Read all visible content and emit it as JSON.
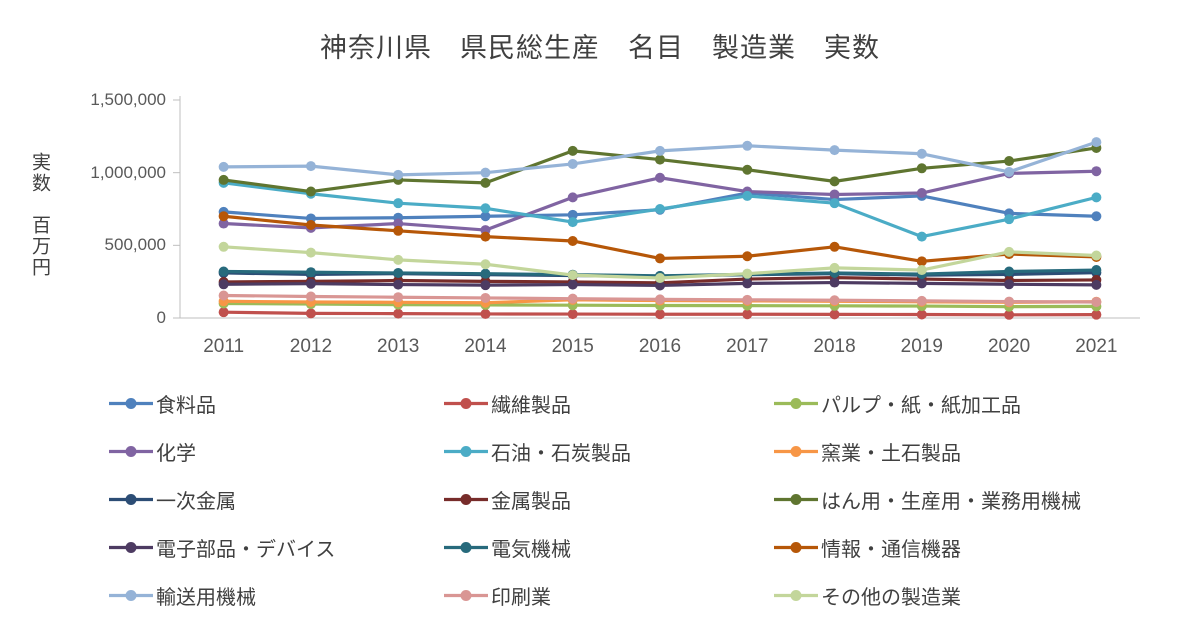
{
  "title": "神奈川県　県民総生産　名目　製造業　実数",
  "y_axis": {
    "label": "実数　百万円",
    "ticks": [
      {
        "label": "1,500,000",
        "value": 1500000
      },
      {
        "label": "1,000,000",
        "value": 1000000
      },
      {
        "label": "500,000",
        "value": 500000
      },
      {
        "label": "0",
        "value": 0
      }
    ]
  },
  "colors": {
    "axis": "#BFBFBF",
    "tick_text": "#595959",
    "title_text": "#404040"
  },
  "chart_data": {
    "type": "line",
    "x": [
      "2011",
      "2012",
      "2013",
      "2014",
      "2015",
      "2016",
      "2017",
      "2018",
      "2019",
      "2020",
      "2021"
    ],
    "ylim": [
      0,
      1500000
    ],
    "ylabel": "実数 百万円",
    "title": "神奈川県 県民総生産 名目 製造業 実数",
    "grid": false,
    "legend_position": "bottom",
    "series": [
      {
        "name": "食料品",
        "color": "#4F81BD",
        "values": [
          730000,
          685000,
          690000,
          700000,
          710000,
          745000,
          860000,
          815000,
          840000,
          720000,
          700000
        ]
      },
      {
        "name": "繊維製品",
        "color": "#C0504D",
        "values": [
          40000,
          32000,
          30000,
          28000,
          27000,
          26000,
          26000,
          25000,
          24000,
          22000,
          23000
        ]
      },
      {
        "name": "パルプ・紙・紙加工品",
        "color": "#9BBB59",
        "values": [
          100000,
          96000,
          92000,
          90000,
          88000,
          86000,
          85000,
          84000,
          82000,
          78000,
          80000
        ]
      },
      {
        "name": "化学",
        "color": "#8064A2",
        "values": [
          650000,
          620000,
          650000,
          605000,
          830000,
          965000,
          870000,
          850000,
          860000,
          995000,
          1010000
        ]
      },
      {
        "name": "石油・石炭製品",
        "color": "#4BACC6",
        "values": [
          930000,
          855000,
          790000,
          755000,
          660000,
          750000,
          840000,
          790000,
          560000,
          680000,
          830000
        ]
      },
      {
        "name": "窯業・土石製品",
        "color": "#F79646",
        "values": [
          115000,
          110000,
          108000,
          105000,
          125000,
          120000,
          118000,
          115000,
          112000,
          108000,
          112000
        ]
      },
      {
        "name": "一次金属",
        "color": "#2C4D75",
        "values": [
          310000,
          300000,
          305000,
          298000,
          292000,
          288000,
          298000,
          305000,
          295000,
          300000,
          312000
        ]
      },
      {
        "name": "金属製品",
        "color": "#772C2A",
        "values": [
          248000,
          252000,
          258000,
          252000,
          248000,
          242000,
          268000,
          278000,
          268000,
          258000,
          262000
        ]
      },
      {
        "name": "はん用・生産用・業務用機械",
        "color": "#5F7530",
        "values": [
          950000,
          870000,
          950000,
          930000,
          1150000,
          1090000,
          1020000,
          940000,
          1030000,
          1080000,
          1170000
        ]
      },
      {
        "name": "電子部品・デバイス",
        "color": "#4D3B62",
        "values": [
          232000,
          236000,
          230000,
          226000,
          230000,
          224000,
          238000,
          244000,
          238000,
          232000,
          228000
        ]
      },
      {
        "name": "電気機械",
        "color": "#276A7C",
        "values": [
          320000,
          315000,
          310000,
          305000,
          298000,
          290000,
          300000,
          310000,
          302000,
          320000,
          330000
        ]
      },
      {
        "name": "情報・通信機器",
        "color": "#B65708",
        "values": [
          700000,
          640000,
          600000,
          560000,
          530000,
          410000,
          425000,
          490000,
          390000,
          440000,
          420000
        ]
      },
      {
        "name": "輸送用機械",
        "color": "#95B3D7",
        "values": [
          1040000,
          1045000,
          985000,
          1000000,
          1060000,
          1150000,
          1185000,
          1155000,
          1130000,
          1005000,
          1210000
        ]
      },
      {
        "name": "印刷業",
        "color": "#D99694",
        "values": [
          155000,
          148000,
          143000,
          138000,
          133000,
          128000,
          125000,
          122000,
          118000,
          113000,
          110000
        ]
      },
      {
        "name": "その他の製造業",
        "color": "#C3D69B",
        "values": [
          490000,
          450000,
          400000,
          370000,
          295000,
          275000,
          305000,
          345000,
          330000,
          455000,
          430000
        ]
      }
    ]
  }
}
